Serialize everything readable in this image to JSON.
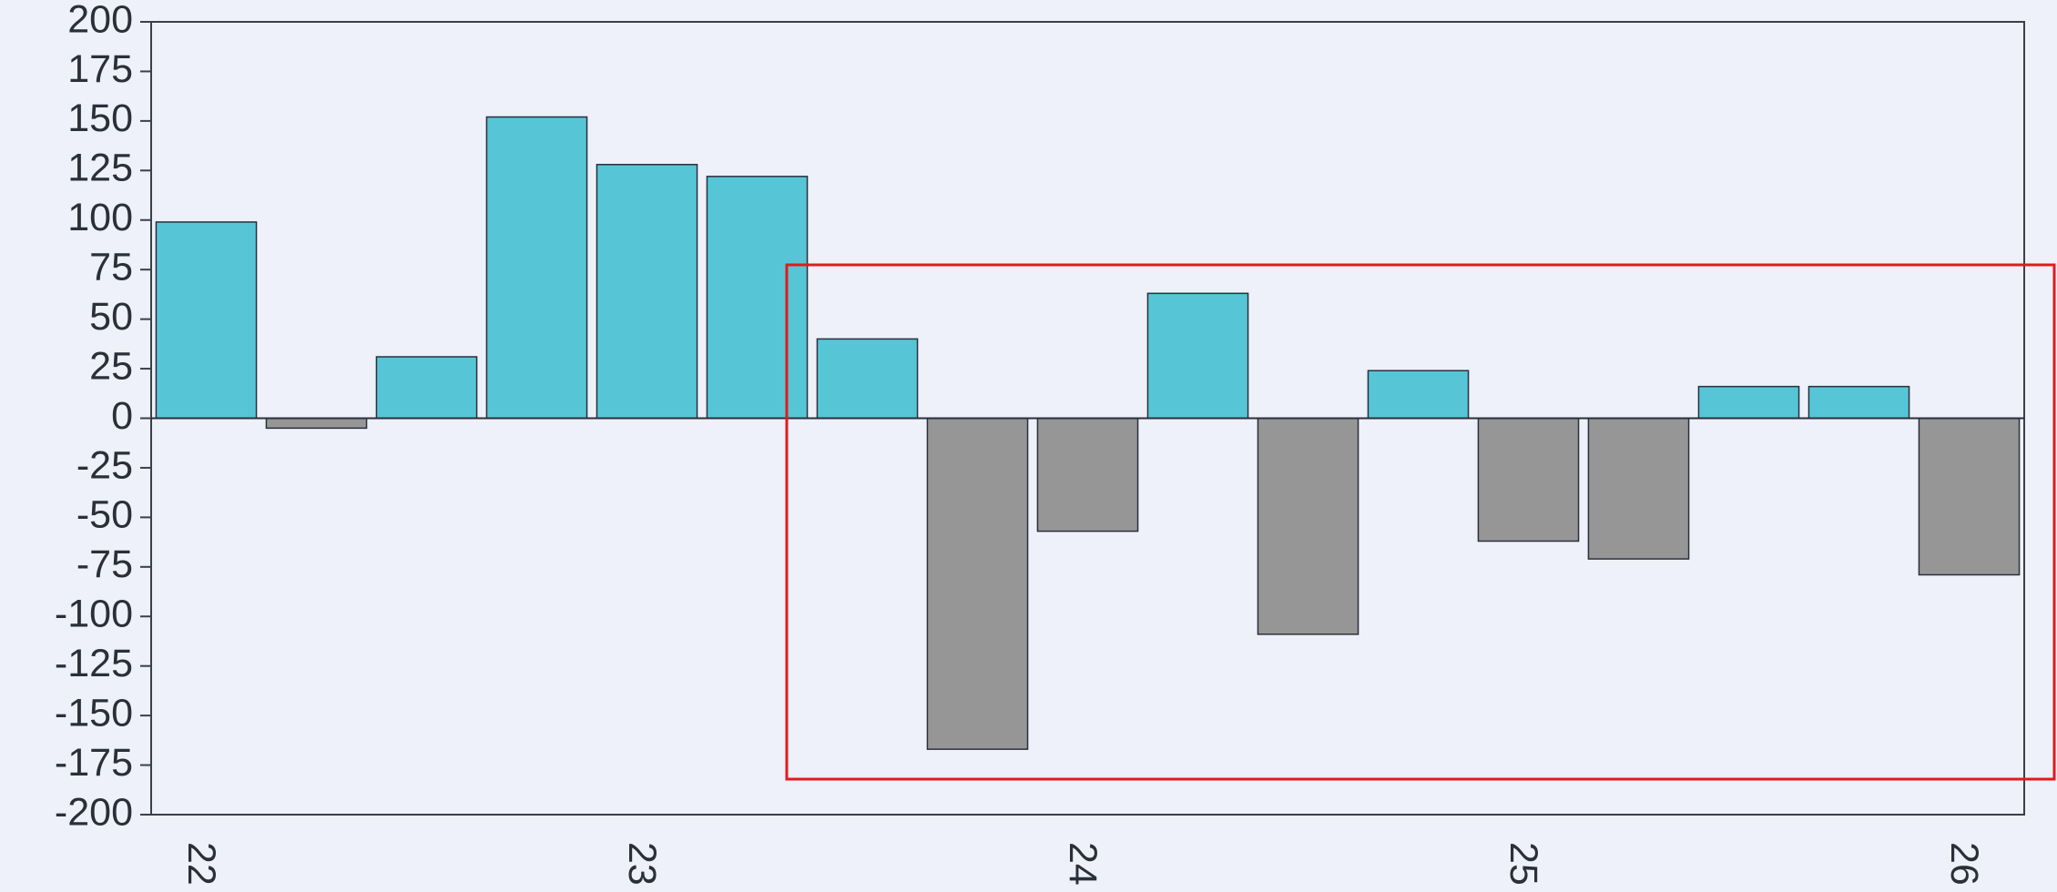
{
  "chart_data": {
    "type": "bar",
    "categories": [
      "22",
      null,
      null,
      null,
      "23",
      null,
      null,
      null,
      "24",
      null,
      null,
      null,
      "25",
      null,
      null,
      null,
      "26"
    ],
    "values": [
      99,
      -5,
      31,
      152,
      128,
      122,
      40,
      -167,
      -57,
      63,
      -109,
      24,
      -62,
      -71,
      16,
      16,
      -79
    ],
    "positive_color": "#56c6d6",
    "negative_color": "#969696",
    "ylim": [
      -200,
      200
    ],
    "yticks": [
      -200,
      -175,
      -150,
      -125,
      -100,
      -75,
      -50,
      -25,
      0,
      25,
      50,
      75,
      100,
      125,
      150,
      175,
      200
    ]
  }
}
